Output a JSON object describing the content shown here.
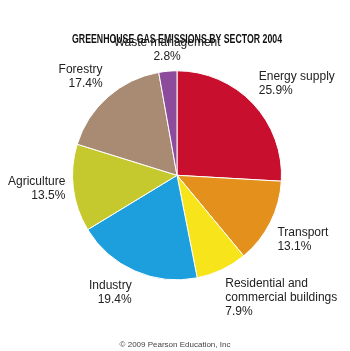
{
  "chart_data": {
    "type": "pie",
    "title": "GREENHOUSE GAS EMISSIONS BY SECTOR 2004",
    "categories": [
      "Energy supply",
      "Transport",
      "Residential and commercial buildings",
      "Industry",
      "Agriculture",
      "Forestry",
      "Waste management"
    ],
    "values": [
      25.9,
      13.1,
      7.9,
      19.4,
      13.5,
      17.4,
      2.8
    ],
    "value_labels": [
      "25.9%",
      "13.1%",
      "7.9%",
      "19.4%",
      "13.5%",
      "17.4%",
      "2.8%"
    ],
    "colors": [
      "#c8102e",
      "#e3901c",
      "#f7e41a",
      "#1c9fdc",
      "#c5c92e",
      "#a88b72",
      "#8d4b9b"
    ],
    "data_labels": true,
    "annotations": [
      "© 2009 Pearson Education, Inc"
    ]
  }
}
